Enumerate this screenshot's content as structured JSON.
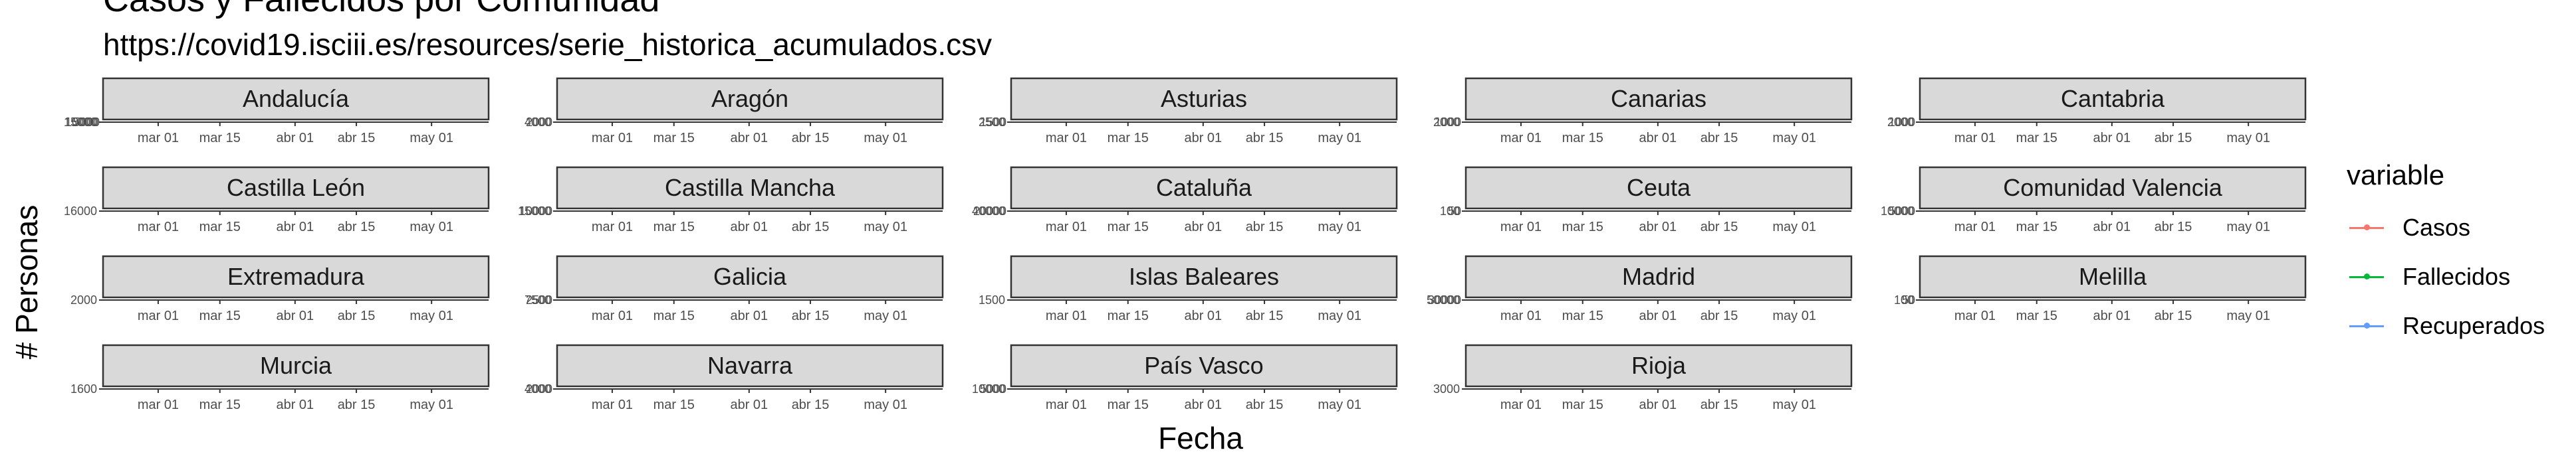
{
  "title": "Casos y Fallecidos por Comunidad",
  "subtitle": "https://covid19.isciii.es/resources/serie_historica_acumulados.csv",
  "chart_data": {
    "type": "line",
    "facets": true,
    "xlabel": "Fecha",
    "ylabel": "# Personas",
    "x_tick_labels": [
      "mar 01",
      "mar 15",
      "abr 01",
      "abr 15",
      "may 01"
    ],
    "grid": false,
    "legend_position": "right",
    "legend": {
      "title": "variable",
      "series": [
        {
          "name": "Casos",
          "color": "#F8766D"
        },
        {
          "name": "Fallecidos",
          "color": "#00BA38"
        },
        {
          "name": "Recuperados",
          "color": "#619CFF"
        }
      ]
    },
    "panels": [
      {
        "name": "Andalucía",
        "y_tick_labels": [
          "15000",
          "10000",
          "5000"
        ]
      },
      {
        "name": "Aragón",
        "y_tick_labels": [
          "4000",
          "2000"
        ]
      },
      {
        "name": "Asturias",
        "y_tick_labels": [
          "2500",
          "1500"
        ]
      },
      {
        "name": "Canarias",
        "y_tick_labels": [
          "2000",
          "1000"
        ]
      },
      {
        "name": "Cantabria",
        "y_tick_labels": [
          "2000",
          "1000"
        ]
      },
      {
        "name": "Castilla León",
        "y_tick_labels": [
          "16000"
        ]
      },
      {
        "name": "Castilla Mancha",
        "y_tick_labels": [
          "15000",
          "10000"
        ]
      },
      {
        "name": "Cataluña",
        "y_tick_labels": [
          "40000",
          "20000"
        ]
      },
      {
        "name": "Ceuta",
        "y_tick_labels": [
          "100",
          "50"
        ]
      },
      {
        "name": "Comunidad Valencia",
        "y_tick_labels": [
          "10000",
          "5000"
        ]
      },
      {
        "name": "Extremadura",
        "y_tick_labels": [
          "2000"
        ]
      },
      {
        "name": "Galicia",
        "y_tick_labels": [
          "7500",
          "2500"
        ]
      },
      {
        "name": "Islas Baleares",
        "y_tick_labels": [
          "1500"
        ]
      },
      {
        "name": "Madrid",
        "y_tick_labels": [
          "50000",
          "30000"
        ]
      },
      {
        "name": "Melilla",
        "y_tick_labels": [
          "100",
          "50"
        ]
      },
      {
        "name": "Murcia",
        "y_tick_labels": [
          "1600"
        ]
      },
      {
        "name": "Navarra",
        "y_tick_labels": [
          "4000",
          "2000"
        ]
      },
      {
        "name": "País Vasco",
        "y_tick_labels": [
          "10000",
          "5000"
        ]
      },
      {
        "name": "Rioja",
        "y_tick_labels": [
          "3000"
        ]
      }
    ]
  }
}
